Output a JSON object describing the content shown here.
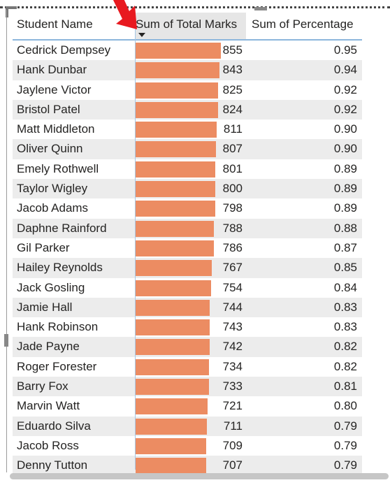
{
  "table": {
    "columns": [
      "Student Name",
      "Sum of Total Marks",
      "Sum of Percentage"
    ],
    "sort_column": "Sum of Total Marks",
    "sort_direction": "descending",
    "bar_color": "#ec8c62",
    "header_highlight": "#e6e6e6",
    "rows": [
      {
        "name": "Cedrick Dempsey",
        "marks": "855",
        "pct": "0.95"
      },
      {
        "name": "Hank Dunbar",
        "marks": "843",
        "pct": "0.94"
      },
      {
        "name": "Jaylene Victor",
        "marks": "825",
        "pct": "0.92"
      },
      {
        "name": "Bristol Patel",
        "marks": "824",
        "pct": "0.92"
      },
      {
        "name": "Matt Middleton",
        "marks": "811",
        "pct": "0.90"
      },
      {
        "name": "Oliver Quinn",
        "marks": "807",
        "pct": "0.90"
      },
      {
        "name": "Emely Rothwell",
        "marks": "801",
        "pct": "0.89"
      },
      {
        "name": "Taylor Wigley",
        "marks": "800",
        "pct": "0.89"
      },
      {
        "name": "Jacob Adams",
        "marks": "798",
        "pct": "0.89"
      },
      {
        "name": "Daphne Rainford",
        "marks": "788",
        "pct": "0.88"
      },
      {
        "name": "Gil Parker",
        "marks": "786",
        "pct": "0.87"
      },
      {
        "name": "Hailey Reynolds",
        "marks": "767",
        "pct": "0.85"
      },
      {
        "name": "Jack Gosling",
        "marks": "754",
        "pct": "0.84"
      },
      {
        "name": "Jamie Hall",
        "marks": "744",
        "pct": "0.83"
      },
      {
        "name": "Hank Robinson",
        "marks": "743",
        "pct": "0.83"
      },
      {
        "name": "Jade Payne",
        "marks": "742",
        "pct": "0.82"
      },
      {
        "name": "Roger Forester",
        "marks": "734",
        "pct": "0.82"
      },
      {
        "name": "Barry Fox",
        "marks": "733",
        "pct": "0.81"
      },
      {
        "name": "Marvin Watt",
        "marks": "721",
        "pct": "0.80"
      },
      {
        "name": "Eduardo Silva",
        "marks": "711",
        "pct": "0.79"
      },
      {
        "name": "Jacob Ross",
        "marks": "709",
        "pct": "0.79"
      },
      {
        "name": "Denny Tutton",
        "marks": "707",
        "pct": "0.79"
      }
    ]
  },
  "annotation": {
    "icon": "red-arrow-icon",
    "color": "#e8191f"
  }
}
